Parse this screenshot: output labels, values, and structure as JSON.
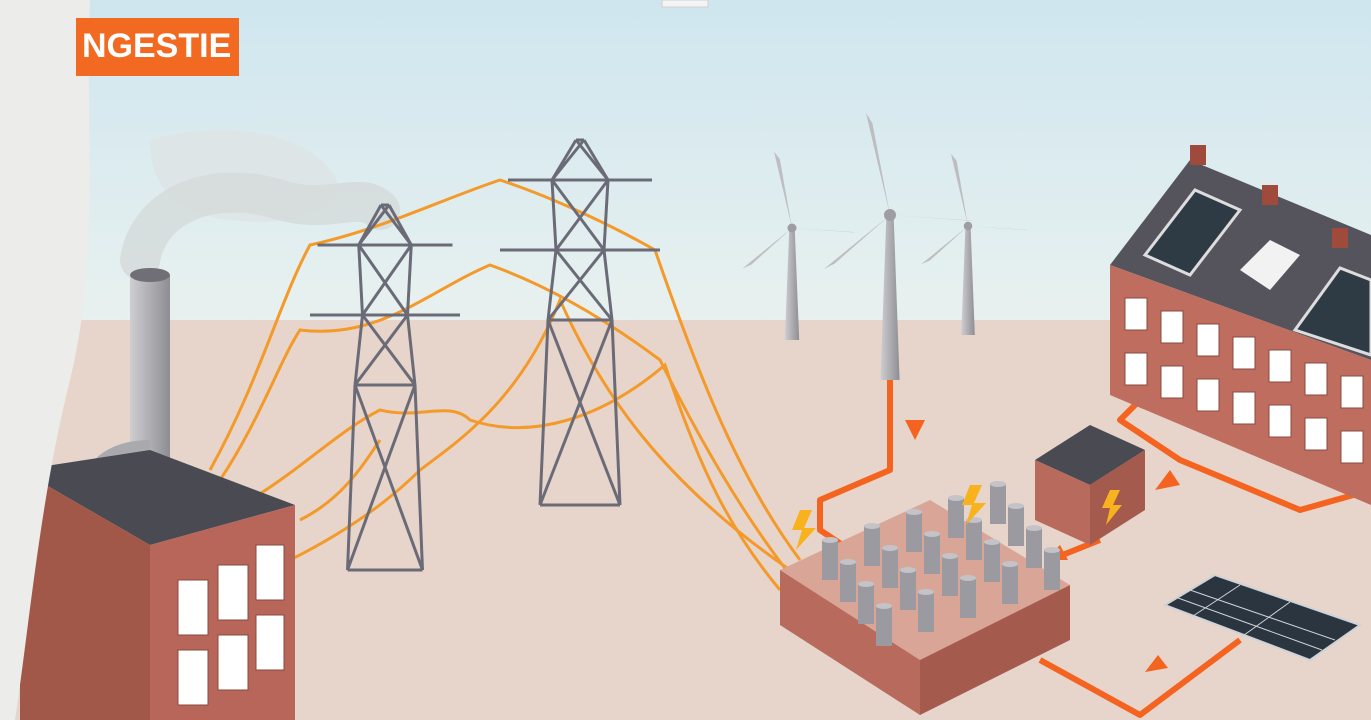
{
  "header": {
    "title": "NGESTIE"
  }
}
